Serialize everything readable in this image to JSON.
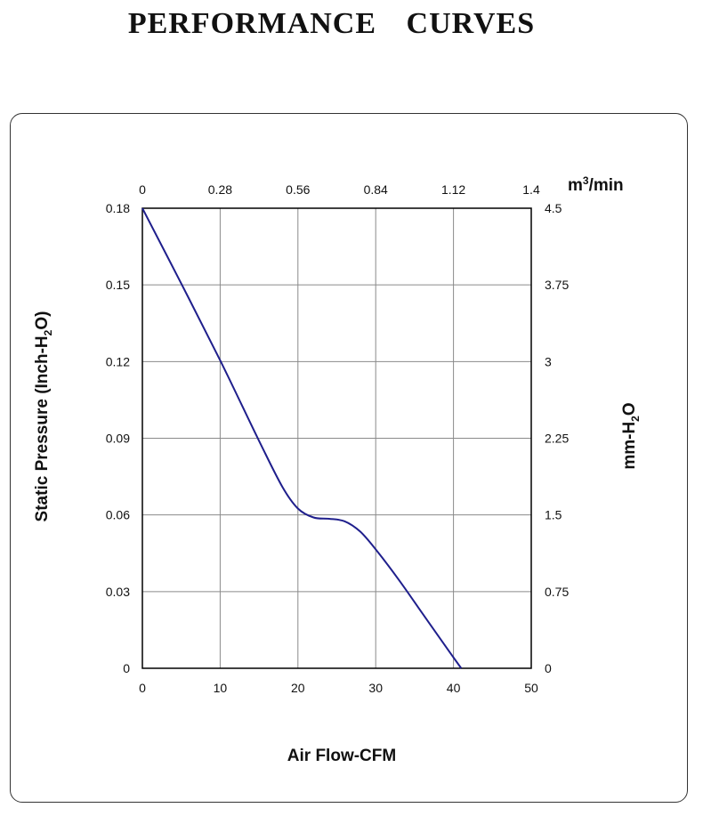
{
  "page": {
    "title": "PERFORMANCE    CURVES"
  },
  "chart_data": {
    "type": "line",
    "xlabel": "Air Flow-CFM",
    "ylabel_parts": [
      "Static Pressure (Inch-H",
      "2",
      "O)"
    ],
    "x2label_parts": [
      "m",
      "3",
      "/min"
    ],
    "y2label_parts": [
      "mm-H",
      "2",
      "O"
    ],
    "xlim": [
      0,
      50
    ],
    "ylim": [
      0,
      0.18
    ],
    "x_ticks": [
      "0",
      "10",
      "20",
      "30",
      "40",
      "50"
    ],
    "y_ticks": [
      "0",
      "0.03",
      "0.06",
      "0.09",
      "0.12",
      "0.15",
      "0.18"
    ],
    "x2_ticks": [
      "0",
      "0.28",
      "0.56",
      "0.84",
      "1.12",
      "1.4"
    ],
    "y2_ticks": [
      "0",
      "0.75",
      "1.5",
      "2.25",
      "3",
      "3.75",
      "4.5"
    ],
    "grid": true,
    "series": [
      {
        "name": "Static Pressure",
        "color": "#1f1f8c",
        "x": [
          0,
          5,
          10,
          15,
          18,
          20,
          22,
          24,
          26,
          28,
          30,
          33,
          36,
          39,
          41
        ],
        "y": [
          0.18,
          0.1505,
          0.1205,
          0.089,
          0.071,
          0.0625,
          0.059,
          0.0585,
          0.0575,
          0.0535,
          0.0465,
          0.0345,
          0.0215,
          0.0085,
          0
        ]
      }
    ]
  }
}
